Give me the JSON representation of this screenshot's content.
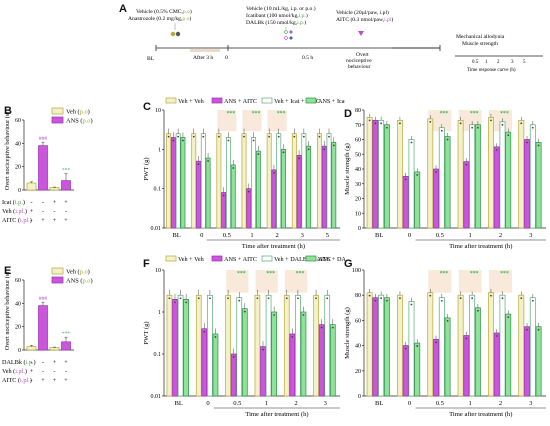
{
  "figure": {
    "panel_letters": [
      "A",
      "B",
      "C",
      "D",
      "E",
      "F",
      "G"
    ]
  },
  "timeline": {
    "top_left_line1": "Vehicle (0.5% CMC,",
    "top_left_route1": "p.o",
    "top_left_line1_end": ")",
    "top_left_line2": "Anastrozole (0.2 mg/kg,",
    "top_left_route2": "p.o",
    "top_left_line2_end": ")",
    "mid_line1": "Vehicle (10 mL/kg, i.p. or p.o.)",
    "mid_line2": "Icatibant (100 nmol/kg,",
    "mid_route2": "i.p.",
    "mid_line2_end": ")",
    "mid_line3": "DALBk (150 nmol/kg,",
    "mid_route3": "i.p.",
    "mid_line3_end": ")",
    "right_line1": "Vehicle (20µl/paw, i.pl)",
    "right_line2": "AITC (0.3 nmol/paw,",
    "right_route2": "i.pl",
    "right_line2_end": ")",
    "bl_label": "BL",
    "after_label": "After 3 h",
    "zero_label": "0",
    "half_label": "0.5 h",
    "overt_label1": "Overt",
    "overt_label2": "nociceptive",
    "overt_label3": "behaviour",
    "far_right_line1": "Mechanical allodynia",
    "far_right_line2": "Muscle strength",
    "time_ticks": [
      "0.5",
      "1",
      "2",
      "3",
      "5"
    ],
    "time_caption": "Time response curve (h)"
  },
  "colors": {
    "veh_veh": "#f3f1c8",
    "veh_edge": "#b9a739",
    "ans_aitc": "#cc55dd",
    "ans_edge": "#9a2fb0",
    "veh_icat": "#ffffff",
    "icat_edge": "#5aa877",
    "ans_icat": "#8fe29a",
    "ans_icat_edge": "#2e8f47",
    "route_po": "#a8a22a",
    "route_ip": "#4fa44f",
    "route_ipl": "#c04ad1",
    "sig_ans": "#b23dc8",
    "sig_trt": "#29b84a",
    "shade": "#f7dfca"
  },
  "chart_data": [
    {
      "panel": "B",
      "type": "bar",
      "ylabel": "Overt nociceptive behaviour (s)",
      "ylim": [
        0,
        60
      ],
      "yticks": [
        "0",
        "20",
        "40",
        "60"
      ],
      "legend": [
        {
          "name": "Veh",
          "route": "p.o"
        },
        {
          "name": "ANS",
          "route": "p.o"
        }
      ],
      "values": [
        6,
        38,
        2,
        8
      ],
      "errors": [
        1,
        3,
        0.5,
        6
      ],
      "bar_kinds": [
        "veh",
        "ans",
        "veh",
        "ans"
      ],
      "annotations": [
        "",
        "###",
        "",
        "***"
      ],
      "rows": [
        {
          "label": "Icat",
          "route": "i.p.",
          "signs": [
            "-",
            "-",
            "+",
            "+"
          ]
        },
        {
          "label": "Veh",
          "route": "i.pl.",
          "signs": [
            "+",
            "-",
            "-",
            "-"
          ]
        },
        {
          "label": "AITC",
          "route": "i.pl.",
          "signs": [
            "-",
            "+",
            "+",
            "+"
          ]
        }
      ]
    },
    {
      "panel": "E",
      "type": "bar",
      "ylabel": "Overt nociceptive behaviour (s)",
      "ylim": [
        0,
        60
      ],
      "yticks": [
        "0",
        "20",
        "40",
        "60"
      ],
      "legend": [
        {
          "name": "Veh",
          "route": "p.o"
        },
        {
          "name": "ANS",
          "route": "p.o"
        }
      ],
      "values": [
        3,
        38,
        2,
        7
      ],
      "errors": [
        1,
        3,
        0.5,
        4
      ],
      "bar_kinds": [
        "veh",
        "ans",
        "veh",
        "ans"
      ],
      "annotations": [
        "",
        "###",
        "",
        "***"
      ],
      "rows": [
        {
          "label": "DALBk",
          "route": "i.p.",
          "signs": [
            "-",
            "-",
            "+",
            "+"
          ]
        },
        {
          "label": "Veh",
          "route": "i.pl.",
          "signs": [
            "+",
            "-",
            "-",
            "-"
          ]
        },
        {
          "label": "AITC",
          "route": "i.pl.",
          "signs": [
            "-",
            "+",
            "+",
            "+"
          ]
        }
      ]
    },
    {
      "panel": "C",
      "type": "bar",
      "scale": "log",
      "ylabel": "PWT (g)",
      "xlabel": "Time after treatment (h)",
      "ylim": [
        0.01,
        10
      ],
      "yticks": [
        "0.01",
        "0.1",
        "1",
        "10"
      ],
      "categories": [
        "BL",
        "0",
        "0.5",
        "1",
        "2",
        "3",
        "5"
      ],
      "legend": [
        "Veh + Veh",
        "ANS + AITC",
        "Veh + Icat + AITC",
        "ANS + Icat + AITC"
      ],
      "series": [
        {
          "name": "Veh + Veh",
          "values": [
            2.5,
            2.5,
            2.5,
            2.5,
            2.5,
            2.5,
            2.5
          ]
        },
        {
          "name": "ANS + AITC",
          "values": [
            2.0,
            0.5,
            0.08,
            0.1,
            0.3,
            0.7,
            1.2
          ]
        },
        {
          "name": "Veh + Icat + AITC",
          "values": [
            2.5,
            2.5,
            2.0,
            2.0,
            2.5,
            2.5,
            2.5
          ]
        },
        {
          "name": "ANS + Icat + AITC",
          "values": [
            2.0,
            0.6,
            0.4,
            0.9,
            1.0,
            1.2,
            1.5
          ]
        }
      ],
      "sig_top": [
        "",
        "",
        "***",
        "***",
        "***",
        "",
        ""
      ]
    },
    {
      "panel": "D",
      "type": "bar",
      "ylabel": "Muscle strength (g)",
      "xlabel": "Time after treatment (h)",
      "ylim": [
        0,
        80
      ],
      "yticks": [
        "0",
        "10",
        "20",
        "30",
        "40",
        "50",
        "60",
        "70",
        "80"
      ],
      "categories": [
        "BL",
        "0",
        "0.5",
        "1",
        "2",
        "3"
      ],
      "series": [
        {
          "name": "Veh + Veh",
          "values": [
            75,
            73,
            74,
            73,
            75,
            73
          ]
        },
        {
          "name": "ANS + AITC",
          "values": [
            73,
            35,
            40,
            45,
            55,
            60
          ]
        },
        {
          "name": "Veh + Icat + AITC",
          "values": [
            73,
            60,
            68,
            70,
            72,
            70
          ]
        },
        {
          "name": "ANS + Icat + AITC",
          "values": [
            70,
            38,
            62,
            70,
            65,
            58
          ]
        }
      ],
      "sig_top": [
        "",
        "",
        "***",
        "***",
        "***",
        ""
      ]
    },
    {
      "panel": "F",
      "type": "bar",
      "scale": "log",
      "ylabel": "PWT (g)",
      "xlabel": "Time after treatment (h)",
      "ylim": [
        0.01,
        10
      ],
      "yticks": [
        "0.01",
        "0.1",
        "1",
        "10"
      ],
      "categories": [
        "BL",
        "0",
        "0.5",
        "1",
        "2",
        "3"
      ],
      "legend": [
        "Veh + Veh",
        "ANS + AITC",
        "Veh + DALBk + AITC",
        "ANS + DALBk+ AITC"
      ],
      "series": [
        {
          "name": "Veh + Veh",
          "values": [
            2.5,
            2.5,
            2.5,
            2.5,
            2.5,
            2.5
          ]
        },
        {
          "name": "ANS + AITC",
          "values": [
            2.0,
            0.4,
            0.1,
            0.15,
            0.3,
            0.5
          ]
        },
        {
          "name": "Veh + DALBk + AITC",
          "values": [
            2.5,
            2.5,
            2.2,
            2.5,
            2.5,
            2.5
          ]
        },
        {
          "name": "ANS + DALBk+ AITC",
          "values": [
            2.0,
            0.3,
            1.2,
            1.0,
            1.0,
            0.5
          ]
        }
      ],
      "sig_top": [
        "",
        "",
        "***",
        "***",
        "***",
        ""
      ]
    },
    {
      "panel": "G",
      "type": "bar",
      "ylabel": "Muscle strength (g)",
      "xlabel": "Time after treatment (h)",
      "ylim": [
        0,
        100
      ],
      "yticks": [
        "0",
        "20",
        "40",
        "60",
        "80",
        "100"
      ],
      "categories": [
        "BL",
        "0",
        "0.5",
        "1",
        "2",
        "3"
      ],
      "series": [
        {
          "name": "Veh + Veh",
          "values": [
            82,
            80,
            82,
            80,
            82,
            80
          ]
        },
        {
          "name": "ANS + AITC",
          "values": [
            78,
            40,
            45,
            48,
            50,
            55
          ]
        },
        {
          "name": "Veh + DALBk + AITC",
          "values": [
            80,
            75,
            78,
            80,
            80,
            78
          ]
        },
        {
          "name": "ANS + DALBk+ AITC",
          "values": [
            78,
            42,
            62,
            70,
            65,
            55
          ]
        }
      ],
      "sig_top": [
        "",
        "",
        "***",
        "***",
        "***",
        ""
      ]
    }
  ]
}
